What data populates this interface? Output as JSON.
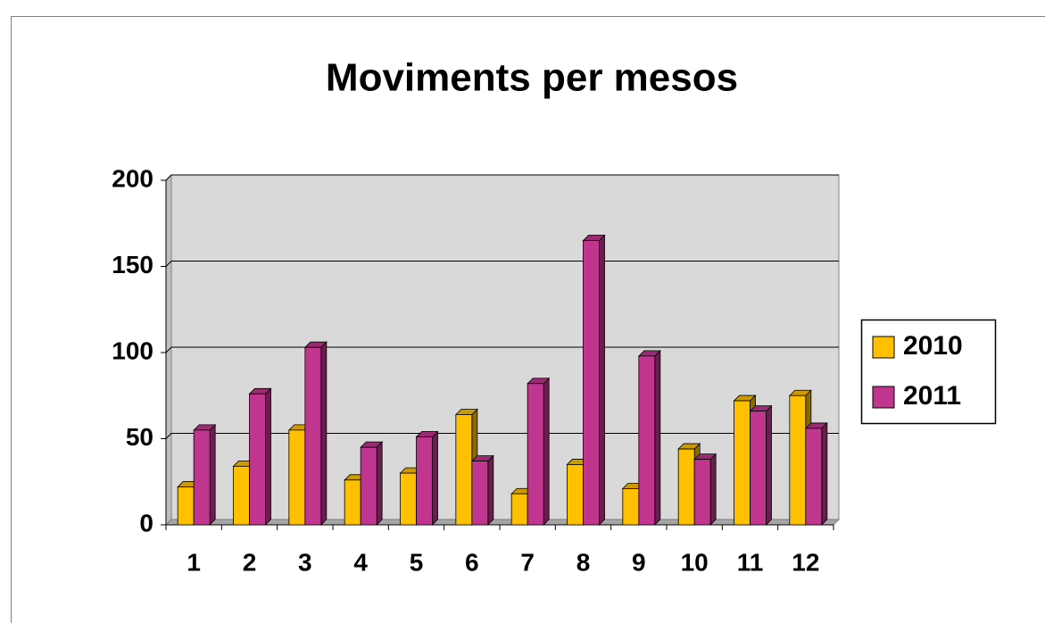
{
  "chart_data": {
    "type": "bar3d",
    "title": "Moviments per mesos",
    "categories": [
      "1",
      "2",
      "3",
      "4",
      "5",
      "6",
      "7",
      "8",
      "9",
      "10",
      "11",
      "12"
    ],
    "series": [
      {
        "name": "2010",
        "color": "#ffc000",
        "values": [
          22,
          34,
          55,
          26,
          30,
          64,
          18,
          35,
          21,
          44,
          72,
          75
        ]
      },
      {
        "name": "2011",
        "color": "#c0358e",
        "values": [
          55,
          76,
          103,
          45,
          51,
          37,
          82,
          165,
          98,
          38,
          66,
          56
        ]
      }
    ],
    "ylim": [
      0,
      200
    ],
    "yticks": [
      0,
      50,
      100,
      150,
      200
    ],
    "grid": true,
    "legend": "right"
  }
}
